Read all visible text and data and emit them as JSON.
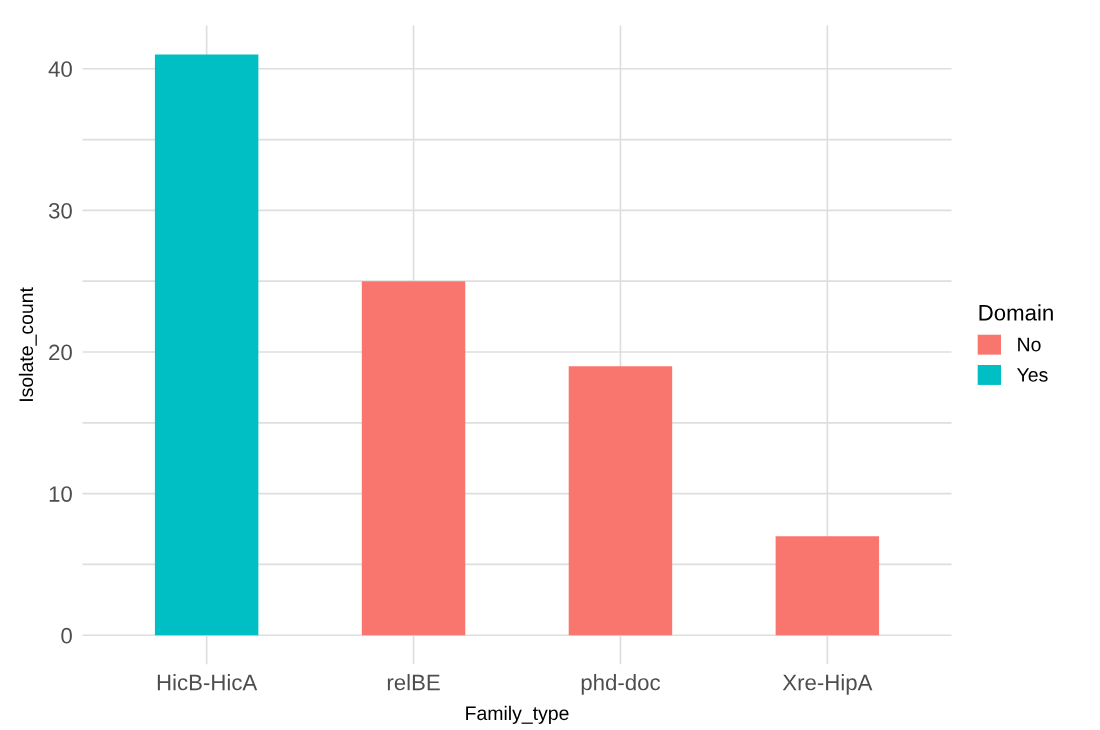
{
  "chart_data": {
    "type": "bar",
    "xlabel": "Family_type",
    "ylabel": "Isolate_count",
    "legend_title": "Domain",
    "categories": [
      "HicB-HicA",
      "relBE",
      "phd-doc",
      "Xre-HipA"
    ],
    "series": [
      {
        "name": "No",
        "color": "#f8766d",
        "values": [
          null,
          25,
          19,
          7
        ]
      },
      {
        "name": "Yes",
        "color": "#00bfc4",
        "values": [
          41,
          null,
          null,
          null
        ]
      }
    ],
    "ylim": [
      -2.05,
      43.05
    ],
    "yticks": [
      0,
      {
        "value": 5,
        "label": null
      },
      10,
      {
        "value": 15,
        "label": null
      },
      20,
      {
        "value": 25,
        "label": null
      },
      30,
      {
        "value": 35,
        "label": null
      },
      40
    ],
    "grid": true,
    "legend": "right"
  }
}
